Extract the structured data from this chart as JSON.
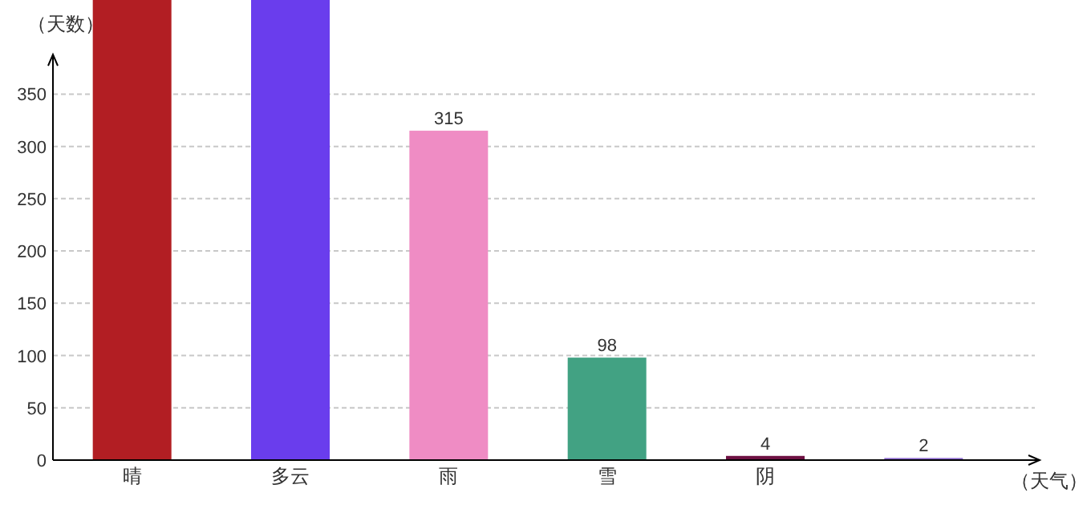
{
  "chart_data": {
    "type": "bar",
    "xlabel": "（天气）",
    "ylabel": "（天数）",
    "categories": [
      "晴",
      "多云",
      "雨",
      "雪",
      "阴",
      null
    ],
    "values": [
      440,
      440,
      315,
      98,
      4,
      2
    ],
    "colors": [
      "#b21e23",
      "#6a3ded",
      "#ef8cc4",
      "#42a283",
      "#6e1143",
      "#8866cc"
    ],
    "value_labels": [
      null,
      null,
      "315",
      "98",
      "4",
      "2"
    ],
    "ylim": [
      0,
      440
    ],
    "yticks": [
      0,
      50,
      100,
      150,
      200,
      250,
      300,
      350
    ],
    "grid": "y"
  }
}
